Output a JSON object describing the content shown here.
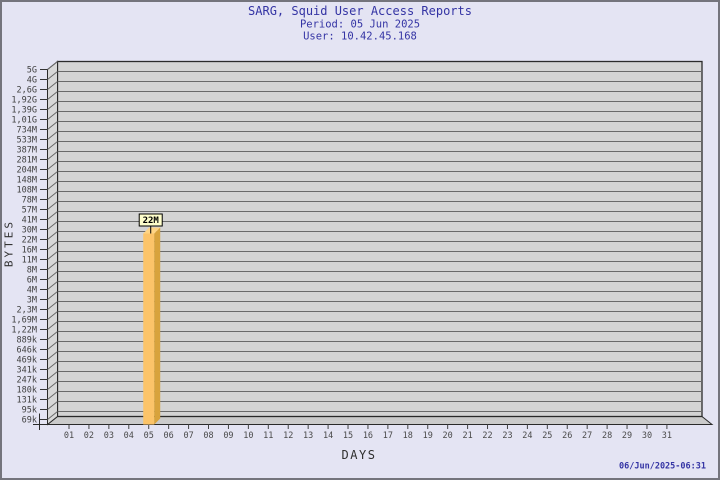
{
  "window": {
    "background": "#E4E4F3",
    "border_color": "#74747C"
  },
  "header": {
    "title": "SARG, Squid User Access Reports",
    "period": "Period: 05 Jun 2025",
    "user": "User: 10.42.45.168",
    "text_color": "#3434A4"
  },
  "footer": {
    "timestamp": "06/Jun/2025-06:31",
    "text_color": "#3434A4"
  },
  "chart_data": {
    "type": "bar",
    "title": "SARG, Squid User Access Reports",
    "subtitle": [
      "Period: 05 Jun 2025",
      "User: 10.42.45.168"
    ],
    "xlabel": "DAYS",
    "ylabel": "BYTES",
    "legend": "none",
    "grid": "horizontal",
    "style": "3d-bar",
    "categories": [
      "01",
      "02",
      "03",
      "04",
      "05",
      "06",
      "07",
      "08",
      "09",
      "10",
      "11",
      "12",
      "13",
      "14",
      "15",
      "16",
      "17",
      "18",
      "19",
      "20",
      "21",
      "22",
      "23",
      "24",
      "25",
      "26",
      "27",
      "28",
      "29",
      "30",
      "31"
    ],
    "series": [
      {
        "name": "bytes",
        "values": [
          0,
          0,
          0,
          0,
          22000000,
          0,
          0,
          0,
          0,
          0,
          0,
          0,
          0,
          0,
          0,
          0,
          0,
          0,
          0,
          0,
          0,
          0,
          0,
          0,
          0,
          0,
          0,
          0,
          0,
          0,
          0
        ]
      }
    ],
    "bars": [
      {
        "day": "05",
        "value_label": "22M",
        "value_bytes": 22000000
      }
    ],
    "y_ticks_top_to_bottom": [
      "5G",
      "4G",
      "2,6G",
      "1,92G",
      "1,39G",
      "1,01G",
      "734M",
      "533M",
      "387M",
      "281M",
      "204M",
      "148M",
      "108M",
      "78M",
      "57M",
      "41M",
      "30M",
      "22M",
      "16M",
      "11M",
      "8M",
      "6M",
      "4M",
      "3M",
      "2,3M",
      "1,69M",
      "1,22M",
      "889k",
      "646k",
      "469k",
      "341k",
      "247k",
      "180k",
      "131k",
      "95k",
      "69k"
    ],
    "colors": {
      "plot_bg": "#D4D4D4",
      "wall": "#D8D8D8",
      "floor": "#CBCBCB",
      "grid": "#6A6A6A",
      "outline": "#2A2A2A",
      "bar_front": "#FCC469",
      "bar_side": "#D8A33C",
      "bar_top": "#FFD584",
      "label_box_bg": "#FFFFCC",
      "tick_text": "#3F3F3F"
    }
  }
}
